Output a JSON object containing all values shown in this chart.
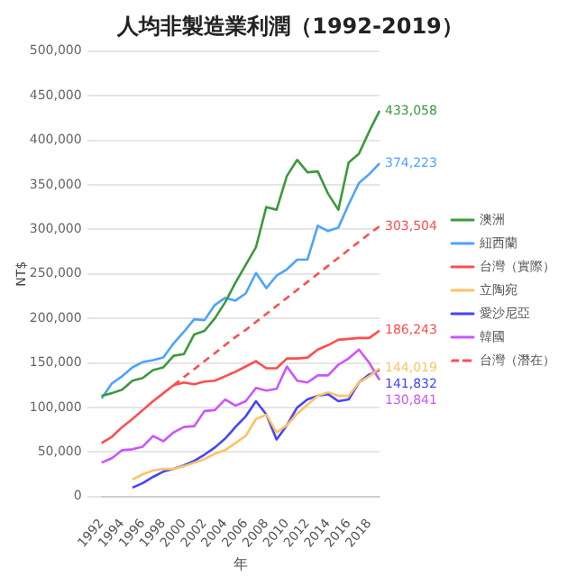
{
  "chart_data": {
    "type": "line",
    "title": "人均非製造業利潤（1992-2019）",
    "xlabel": "年",
    "ylabel": "NT$",
    "categories": [
      "1992",
      null,
      "1994",
      null,
      "1996",
      null,
      "1998",
      null,
      "2000",
      null,
      "2002",
      null,
      "2004",
      null,
      "2006",
      null,
      "2008",
      null,
      "2010",
      null,
      "2012",
      null,
      "2014",
      null,
      "2016",
      null,
      "2018",
      null
    ],
    "ylim": [
      0,
      500000
    ],
    "yticks": [
      {
        "value": 0,
        "label": "0"
      },
      {
        "value": 50000,
        "label": "50,000"
      },
      {
        "value": 100000,
        "label": "100,000"
      },
      {
        "value": 150000,
        "label": "150,000"
      },
      {
        "value": 200000,
        "label": "200,000"
      },
      {
        "value": 250000,
        "label": "250,000"
      },
      {
        "value": 300000,
        "label": "300,000"
      },
      {
        "value": 350000,
        "label": "350,000"
      },
      {
        "value": 400000,
        "label": "400,000"
      },
      {
        "value": 450000,
        "label": "450,000"
      },
      {
        "value": 500000,
        "label": "500,000"
      }
    ],
    "grid": "y",
    "legend": "right",
    "marker": "none",
    "series": [
      {
        "name": "澳洲",
        "color": "#3c9a3c",
        "values": [
          113000,
          116000,
          120000,
          130000,
          133000,
          142000,
          145000,
          158000,
          160000,
          182000,
          186000,
          200000,
          218000,
          240000,
          260000,
          280000,
          325000,
          322000,
          360000,
          378000,
          364000,
          365000,
          340000,
          322000,
          375000,
          385000,
          410000,
          433058
        ],
        "value_labels": [
          null,
          null,
          null,
          null,
          null,
          null,
          null,
          null,
          null,
          null,
          null,
          null,
          null,
          null,
          null,
          null,
          null,
          null,
          null,
          null,
          null,
          null,
          null,
          null,
          null,
          null,
          null,
          "433,058"
        ]
      },
      {
        "name": "紐西蘭",
        "color": "#4da3ff",
        "values": [
          110000,
          127000,
          135000,
          145000,
          151000,
          153000,
          156000,
          172000,
          185000,
          199000,
          198000,
          215000,
          223000,
          220000,
          228000,
          251000,
          234000,
          248000,
          255000,
          266000,
          266000,
          304000,
          298000,
          302000,
          328000,
          352000,
          362000,
          374223
        ],
        "value_labels": [
          null,
          null,
          null,
          null,
          null,
          null,
          null,
          null,
          null,
          null,
          null,
          null,
          null,
          null,
          null,
          null,
          null,
          null,
          null,
          null,
          null,
          null,
          null,
          null,
          null,
          null,
          null,
          "374,223"
        ]
      },
      {
        "name": "台灣（實際）",
        "color": "#ff4d4d",
        "values": [
          60000,
          67000,
          78000,
          87000,
          97000,
          107000,
          116000,
          125000,
          128000,
          126000,
          129000,
          130000,
          135000,
          140000,
          146000,
          152000,
          144000,
          144000,
          155000,
          155000,
          156000,
          165000,
          170000,
          176000,
          177000,
          178000,
          178000,
          186243
        ],
        "value_labels": [
          null,
          null,
          null,
          null,
          null,
          null,
          null,
          null,
          null,
          null,
          null,
          null,
          null,
          null,
          null,
          null,
          null,
          null,
          null,
          null,
          null,
          null,
          null,
          null,
          null,
          null,
          null,
          "186,243"
        ]
      },
      {
        "name": "立陶宛",
        "color": "#ffc266",
        "values": [
          null,
          null,
          null,
          19000,
          25000,
          29000,
          31000,
          31000,
          34000,
          38000,
          42000,
          48000,
          52000,
          60000,
          68000,
          87000,
          92000,
          72000,
          80000,
          93000,
          103000,
          113000,
          117000,
          113000,
          113000,
          128000,
          135000,
          144019
        ],
        "value_labels": [
          null,
          null,
          null,
          null,
          null,
          null,
          null,
          null,
          null,
          null,
          null,
          null,
          null,
          null,
          null,
          null,
          null,
          null,
          null,
          null,
          null,
          null,
          null,
          null,
          null,
          null,
          null,
          "144,019"
        ]
      },
      {
        "name": "愛沙尼亞",
        "color": "#4444ff",
        "values": [
          null,
          null,
          null,
          10000,
          15000,
          22000,
          28000,
          31000,
          35000,
          40000,
          47000,
          55000,
          65000,
          78000,
          90000,
          107000,
          92000,
          64000,
          80000,
          100000,
          109000,
          113000,
          115000,
          107000,
          109000,
          128000,
          137000,
          141832
        ],
        "value_labels": [
          null,
          null,
          null,
          null,
          null,
          null,
          null,
          null,
          null,
          null,
          null,
          null,
          null,
          null,
          null,
          null,
          null,
          null,
          null,
          null,
          null,
          null,
          null,
          null,
          null,
          null,
          null,
          "141,832"
        ]
      },
      {
        "name": "韓國",
        "color": "#cc55ff",
        "values": [
          38000,
          43000,
          52000,
          53000,
          56000,
          68000,
          62000,
          72000,
          78000,
          79000,
          96000,
          97000,
          109000,
          102000,
          107000,
          122000,
          119000,
          121000,
          146000,
          130000,
          128000,
          136000,
          136000,
          148000,
          155000,
          165000,
          150000,
          130841
        ],
        "value_labels": [
          null,
          null,
          null,
          null,
          null,
          null,
          null,
          null,
          null,
          null,
          null,
          null,
          null,
          null,
          null,
          null,
          null,
          null,
          null,
          null,
          null,
          null,
          null,
          null,
          null,
          null,
          null,
          "130,841"
        ]
      },
      {
        "name": "台灣（潛在）",
        "color": "#ff4d4d",
        "line_style": "dashed",
        "values": [
          null,
          null,
          null,
          null,
          null,
          null,
          null,
          125000,
          134000,
          143000,
          152000,
          161000,
          170000,
          179000,
          187000,
          196000,
          205000,
          214000,
          223000,
          232000,
          241000,
          250000,
          259000,
          268000,
          277000,
          286000,
          295000,
          303504
        ],
        "value_labels": [
          null,
          null,
          null,
          null,
          null,
          null,
          null,
          null,
          null,
          null,
          null,
          null,
          null,
          null,
          null,
          null,
          null,
          null,
          null,
          null,
          null,
          null,
          null,
          null,
          null,
          null,
          null,
          "303,504"
        ]
      }
    ]
  }
}
